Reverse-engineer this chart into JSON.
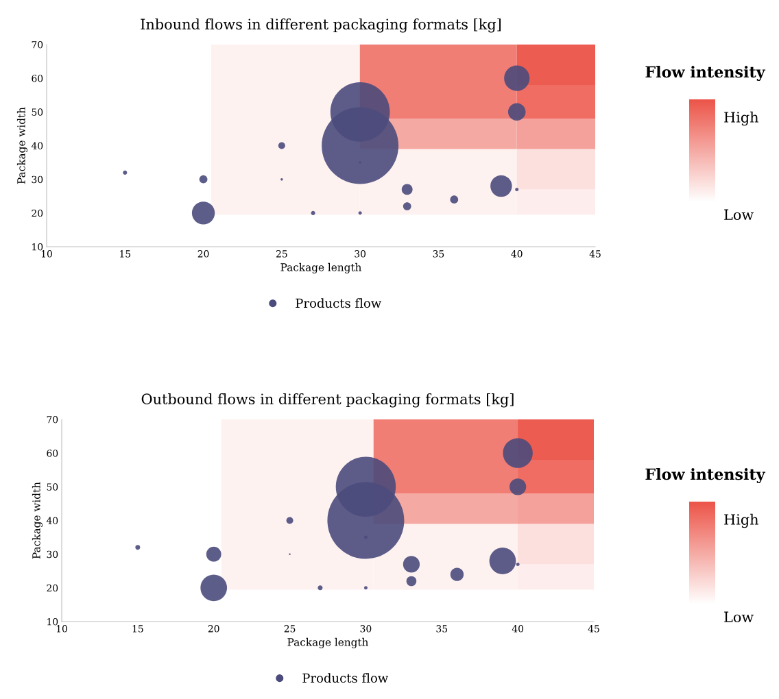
{
  "chart_data": [
    {
      "type": "bubble",
      "title": "Inbound flows in different packaging formats [kg]",
      "xlabel": "Package length",
      "ylabel": "Package width",
      "xlim": [
        10,
        45
      ],
      "ylim": [
        10,
        70
      ],
      "xticks": [
        10,
        15,
        20,
        25,
        30,
        35,
        40,
        45
      ],
      "yticks": [
        10,
        20,
        30,
        40,
        50,
        60,
        70
      ],
      "legend": "bottom",
      "annotations": [
        "Flow intensity",
        "High",
        "Low"
      ],
      "series": [
        {
          "name": "Products flow",
          "color": "#4b4b7c",
          "x": [
            15,
            20,
            20,
            25,
            25,
            27,
            30,
            30,
            30,
            30,
            33,
            33,
            36,
            39,
            40,
            40,
            40
          ],
          "values": [
            32,
            30,
            20,
            40,
            30,
            20,
            20,
            35,
            50,
            40,
            27,
            22,
            24,
            28,
            27,
            50,
            60
          ],
          "sizes": [
            0.003,
            0.011,
            0.089,
            0.008,
            0.001,
            0.003,
            0.002,
            0.001,
            0.6,
            1,
            0.02,
            0.011,
            0.011,
            0.079,
            0.002,
            0.052,
            0.11
          ]
        }
      ]
    },
    {
      "type": "bubble",
      "title": "Outbound flows in different packaging formats [kg]",
      "xlabel": "Package length",
      "ylabel": "Package width",
      "xlim": [
        10,
        45
      ],
      "ylim": [
        10,
        70
      ],
      "xticks": [
        10,
        15,
        20,
        25,
        30,
        35,
        40,
        45
      ],
      "yticks": [
        10,
        20,
        30,
        40,
        50,
        60,
        70
      ],
      "legend": "bottom",
      "annotations": [
        "Flow intensity",
        "High",
        "Low"
      ],
      "series": [
        {
          "name": "Products flow",
          "color": "#4b4b7c",
          "x": [
            15,
            20,
            20,
            25,
            25,
            27,
            30,
            30,
            30,
            30,
            33,
            33,
            36,
            39,
            40,
            40,
            40
          ],
          "values": [
            32,
            30,
            20,
            40,
            30,
            20,
            20,
            35,
            50,
            40,
            27,
            22,
            24,
            28,
            27,
            50,
            60
          ],
          "sizes": [
            0.004,
            0.038,
            0.12,
            0.008,
            0.0005,
            0.004,
            0.002,
            0.002,
            0.61,
            1,
            0.047,
            0.017,
            0.03,
            0.12,
            0.002,
            0.047,
            0.15
          ]
        }
      ]
    }
  ]
}
